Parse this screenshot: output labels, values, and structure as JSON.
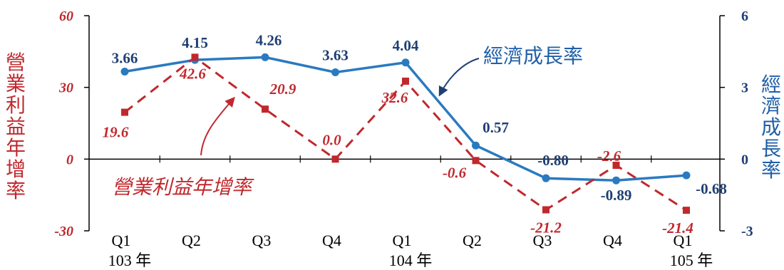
{
  "chart_data": {
    "type": "line",
    "categories": [
      "Q1",
      "Q2",
      "Q3",
      "Q4",
      "Q1",
      "Q2",
      "Q3",
      "Q4",
      "Q1"
    ],
    "years": [
      {
        "label": "103 年",
        "index": 0
      },
      {
        "label": "104 年",
        "index": 4
      },
      {
        "label": "105 年",
        "index": 8
      }
    ],
    "left_axis": {
      "title": "營業利益年增率",
      "ylim": [
        -30,
        60
      ],
      "ticks": [
        60,
        30,
        0,
        -30
      ],
      "tick_labels": [
        "60",
        "30",
        "0",
        "-30"
      ],
      "color": "#c0282d"
    },
    "right_axis": {
      "title": "經濟成長率",
      "ylim": [
        -3,
        6
      ],
      "ticks": [
        6,
        3,
        0,
        -3
      ],
      "tick_labels": [
        "6",
        "3",
        "0",
        "-3"
      ],
      "color": "#1f5fa8"
    },
    "series": [
      {
        "name": "經濟成長率",
        "axis": "right",
        "style": "solid",
        "marker": "circle",
        "color": "#2a7ac0",
        "label_color": "#1f3f73",
        "values": [
          3.66,
          4.15,
          4.26,
          3.63,
          4.04,
          0.57,
          -0.8,
          -0.89,
          -0.68
        ],
        "labels": [
          "3.66",
          "4.15",
          "4.26",
          "3.63",
          "4.04",
          "0.57",
          "-0.80",
          "-0.89",
          "-0.68"
        ]
      },
      {
        "name": "營業利益年增率",
        "axis": "left",
        "style": "dashed",
        "marker": "square",
        "color": "#c0282d",
        "label_color": "#c0282d",
        "values": [
          19.6,
          42.6,
          20.9,
          0.0,
          32.6,
          -0.6,
          -21.2,
          -2.6,
          -21.4
        ],
        "labels": [
          "19.6",
          "42.6",
          "20.9",
          "0.0",
          "32.6",
          "-0.6",
          "-21.2",
          "-2.6",
          "-21.4"
        ]
      }
    ],
    "legend": "inline-annotations",
    "grid": false
  }
}
